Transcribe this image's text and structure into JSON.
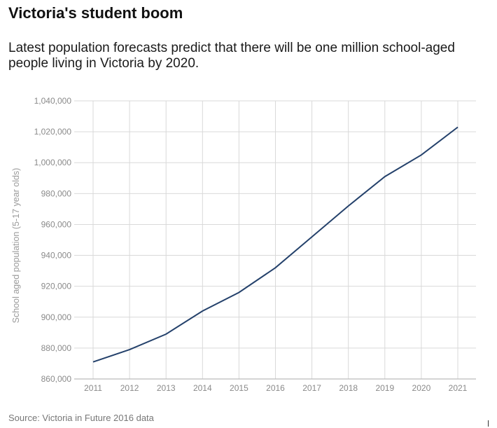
{
  "title": "Victoria's student boom",
  "subtitle": "Latest population forecasts predict that there will be one million school-aged people living in Victoria by 2020.",
  "source": "Source: Victoria in Future 2016 data",
  "colors": {
    "line": "#24416b",
    "grid": "#d9d9d9",
    "axis": "#bcbcbc",
    "tick_text": "#8a8a8a"
  },
  "chart_data": {
    "type": "line",
    "title": "",
    "xlabel": "",
    "ylabel": "School aged population (5-17 year olds)",
    "x": [
      2011,
      2012,
      2013,
      2014,
      2015,
      2016,
      2017,
      2018,
      2019,
      2020,
      2021
    ],
    "series": [
      {
        "values": [
          871000,
          879000,
          889000,
          904000,
          916000,
          932000,
          952000,
          972000,
          991000,
          1005000,
          1023000
        ]
      }
    ],
    "ylim": [
      860000,
      1040000
    ],
    "yticks": [
      "860,000",
      "880,000",
      "900,000",
      "920,000",
      "940,000",
      "960,000",
      "980,000",
      "1,000,000",
      "1,020,000",
      "1,040,000"
    ],
    "xticks": [
      "2011",
      "2012",
      "2013",
      "2014",
      "2015",
      "2016",
      "2017",
      "2018",
      "2019",
      "2020",
      "2021"
    ],
    "grid": true,
    "legend": "none"
  }
}
